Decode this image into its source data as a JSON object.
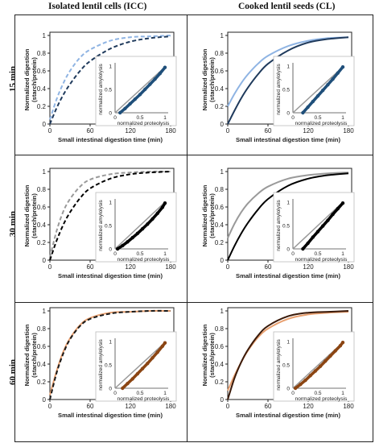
{
  "column_titles": [
    "Isolated lentil cells (ICC)",
    "Cooked lentil seeds (CL)"
  ],
  "row_labels": [
    "15 min",
    "30 min",
    "60 min"
  ],
  "chart_data": [
    {
      "id": "icc-15",
      "type": "line",
      "row": 0,
      "col": 0,
      "xlabel": "Small intestinal digestion time (min)",
      "ylabel": "Normalized digestion (starch/protein)",
      "xticks": [
        0,
        60,
        120,
        180
      ],
      "yticks": [
        0,
        0.2,
        0.4,
        0.6,
        0.8,
        1
      ],
      "xlim": [
        0,
        180
      ],
      "ylim": [
        0,
        1
      ],
      "series": [
        {
          "color": "#8fb4e3",
          "dash": true,
          "values": {
            "x": [
              0,
              10,
              20,
              30,
              45,
              60,
              90,
              120,
              150,
              180
            ],
            "y": [
              0.05,
              0.28,
              0.46,
              0.6,
              0.75,
              0.84,
              0.94,
              0.98,
              0.99,
              1.0
            ]
          }
        },
        {
          "color": "#1f3a5c",
          "dash": true,
          "values": {
            "x": [
              0,
              10,
              20,
              30,
              45,
              60,
              90,
              120,
              150,
              180
            ],
            "y": [
              0.0,
              0.18,
              0.33,
              0.45,
              0.6,
              0.71,
              0.85,
              0.93,
              0.97,
              0.99
            ]
          }
        }
      ],
      "inset": {
        "type": "scatter",
        "xlabel": "normalized proteolysis",
        "ylabel": "normalized amylolysis",
        "xticks": [
          0,
          0.5,
          1
        ],
        "yticks": [
          0,
          0.5,
          1
        ],
        "color": "#1f4f7a",
        "line_y": [
          0.0,
          0.98
        ],
        "points": {
          "x": [
            0.1,
            0.2,
            0.3,
            0.4,
            0.5,
            0.6,
            0.7,
            0.8,
            0.9,
            1.0
          ],
          "y": [
            0.0,
            0.09,
            0.19,
            0.29,
            0.39,
            0.5,
            0.61,
            0.72,
            0.84,
            0.97
          ]
        }
      }
    },
    {
      "id": "cl-15",
      "type": "line",
      "row": 0,
      "col": 1,
      "xlabel": "Small intestinal digestion time (min)",
      "ylabel": "Normalized digestion (starch/protein)",
      "xticks": [
        0,
        60,
        120,
        180
      ],
      "yticks": [
        0,
        0.2,
        0.4,
        0.6,
        0.8,
        1
      ],
      "xlim": [
        0,
        180
      ],
      "ylim": [
        0,
        1
      ],
      "series": [
        {
          "color": "#8fb4e3",
          "dash": false,
          "values": {
            "x": [
              0,
              10,
              20,
              30,
              45,
              60,
              90,
              120,
              150,
              180
            ],
            "y": [
              0.2,
              0.34,
              0.46,
              0.56,
              0.68,
              0.77,
              0.88,
              0.94,
              0.97,
              0.98
            ]
          }
        },
        {
          "color": "#1f3a5c",
          "dash": false,
          "values": {
            "x": [
              0,
              10,
              20,
              30,
              45,
              60,
              90,
              120,
              150,
              180
            ],
            "y": [
              0.0,
              0.15,
              0.29,
              0.41,
              0.56,
              0.68,
              0.83,
              0.92,
              0.96,
              0.98
            ]
          }
        }
      ],
      "inset": {
        "type": "scatter",
        "xlabel": "normalized proteolysis",
        "ylabel": "normalized amylolysis",
        "xticks": [
          0,
          0.5,
          1
        ],
        "yticks": [
          0,
          0.5,
          1
        ],
        "color": "#1f4f7a",
        "line_y": [
          0.0,
          0.98
        ],
        "points": {
          "x": [
            0.2,
            0.3,
            0.4,
            0.5,
            0.6,
            0.7,
            0.8,
            0.9,
            1.0
          ],
          "y": [
            0.0,
            0.12,
            0.24,
            0.36,
            0.48,
            0.6,
            0.72,
            0.85,
            0.98
          ]
        }
      }
    },
    {
      "id": "icc-30",
      "type": "line",
      "row": 1,
      "col": 0,
      "xlabel": "Small intestinal digestion time (min)",
      "ylabel": "Normalized digestion (starch/protein)",
      "xticks": [
        0,
        60,
        120,
        180
      ],
      "yticks": [
        0,
        0.2,
        0.4,
        0.6,
        0.8,
        1
      ],
      "xlim": [
        0,
        180
      ],
      "ylim": [
        0,
        1
      ],
      "series": [
        {
          "color": "#9a9a9a",
          "dash": true,
          "values": {
            "x": [
              0,
              10,
              20,
              30,
              45,
              60,
              90,
              120,
              150,
              180
            ],
            "y": [
              0.03,
              0.33,
              0.55,
              0.69,
              0.83,
              0.91,
              0.97,
              0.99,
              1.0,
              1.0
            ]
          }
        },
        {
          "color": "#000000",
          "dash": true,
          "values": {
            "x": [
              0,
              10,
              20,
              30,
              45,
              60,
              90,
              120,
              150,
              180
            ],
            "y": [
              0.0,
              0.22,
              0.4,
              0.54,
              0.7,
              0.81,
              0.92,
              0.97,
              0.99,
              1.0
            ]
          }
        }
      ],
      "inset": {
        "type": "scatter",
        "xlabel": "normalized proteolysis",
        "ylabel": "normalized amylolysis",
        "xticks": [
          0,
          0.5,
          1
        ],
        "yticks": [
          0,
          0.5,
          1
        ],
        "color": "#000000",
        "line_y": [
          0.0,
          1.0
        ],
        "points": {
          "x": [
            0.05,
            0.15,
            0.25,
            0.35,
            0.45,
            0.55,
            0.65,
            0.75,
            0.85,
            0.95,
            1.0
          ],
          "y": [
            0.0,
            0.07,
            0.15,
            0.24,
            0.33,
            0.43,
            0.53,
            0.64,
            0.76,
            0.89,
            0.98
          ]
        }
      }
    },
    {
      "id": "cl-30",
      "type": "line",
      "row": 1,
      "col": 1,
      "xlabel": "Small intestinal digestion time (min)",
      "ylabel": "Normalized digestion (starch/protein)",
      "xticks": [
        0,
        60,
        120,
        180
      ],
      "yticks": [
        0,
        0.2,
        0.4,
        0.6,
        0.8,
        1
      ],
      "xlim": [
        0,
        180
      ],
      "ylim": [
        0,
        1
      ],
      "series": [
        {
          "color": "#9a9a9a",
          "dash": false,
          "values": {
            "x": [
              0,
              10,
              20,
              30,
              45,
              60,
              90,
              120,
              150,
              180
            ],
            "y": [
              0.25,
              0.41,
              0.54,
              0.64,
              0.75,
              0.83,
              0.92,
              0.96,
              0.98,
              0.99
            ]
          }
        },
        {
          "color": "#000000",
          "dash": false,
          "values": {
            "x": [
              0,
              10,
              20,
              30,
              45,
              60,
              90,
              120,
              150,
              180
            ],
            "y": [
              0.0,
              0.16,
              0.3,
              0.42,
              0.57,
              0.69,
              0.84,
              0.92,
              0.96,
              0.98
            ]
          }
        }
      ],
      "inset": {
        "type": "scatter",
        "xlabel": "normalized proteolysis",
        "ylabel": "normalized amylolysis",
        "xticks": [
          0,
          0.5,
          1
        ],
        "yticks": [
          0,
          0.5,
          1
        ],
        "color": "#000000",
        "line_y": [
          0.0,
          1.0
        ],
        "points": {
          "x": [
            0.2,
            0.3,
            0.4,
            0.5,
            0.6,
            0.7,
            0.8,
            0.9,
            1.0
          ],
          "y": [
            0.0,
            0.12,
            0.25,
            0.37,
            0.49,
            0.61,
            0.74,
            0.86,
            0.98
          ]
        }
      }
    },
    {
      "id": "icc-60",
      "type": "line",
      "row": 2,
      "col": 0,
      "xlabel": "Small intestinal digestion time (min)",
      "ylabel": "Normalized digestion (starch/protein)",
      "xticks": [
        0,
        60,
        120,
        180
      ],
      "yticks": [
        0,
        0.2,
        0.4,
        0.6,
        0.8,
        1
      ],
      "xlim": [
        0,
        180
      ],
      "ylim": [
        0,
        1
      ],
      "series": [
        {
          "color": "#e8a070",
          "dash": false,
          "values": {
            "x": [
              0,
              10,
              20,
              30,
              45,
              60,
              90,
              120,
              150,
              180
            ],
            "y": [
              0.05,
              0.32,
              0.54,
              0.69,
              0.84,
              0.92,
              0.98,
              0.99,
              1.0,
              1.0
            ]
          }
        },
        {
          "color": "#1a1a1a",
          "dash": true,
          "values": {
            "x": [
              0,
              10,
              20,
              30,
              45,
              60,
              90,
              120,
              150,
              180
            ],
            "y": [
              0.0,
              0.3,
              0.52,
              0.68,
              0.83,
              0.91,
              0.97,
              0.99,
              1.0,
              1.0
            ]
          }
        }
      ],
      "inset": {
        "type": "scatter",
        "xlabel": "normalized proteolysis",
        "ylabel": "normalized amylolysis",
        "xticks": [
          0,
          0.5,
          1
        ],
        "yticks": [
          0,
          0.5,
          1
        ],
        "color": "#8b4513",
        "line_y": [
          0.0,
          0.98
        ],
        "points": {
          "x": [
            0.15,
            0.25,
            0.35,
            0.45,
            0.55,
            0.65,
            0.75,
            0.85,
            0.95,
            1.0
          ],
          "y": [
            0.0,
            0.1,
            0.2,
            0.31,
            0.42,
            0.53,
            0.65,
            0.77,
            0.9,
            0.97
          ]
        }
      }
    },
    {
      "id": "cl-60",
      "type": "line",
      "row": 2,
      "col": 1,
      "xlabel": "Small intestinal digestion time (min)",
      "ylabel": "Normalized digestion (starch/protein)",
      "xticks": [
        0,
        60,
        120,
        180
      ],
      "yticks": [
        0,
        0.2,
        0.4,
        0.6,
        0.8,
        1
      ],
      "xlim": [
        0,
        180
      ],
      "ylim": [
        0,
        1
      ],
      "series": [
        {
          "color": "#e8a070",
          "dash": false,
          "values": {
            "x": [
              0,
              10,
              20,
              30,
              45,
              60,
              90,
              120,
              150,
              180
            ],
            "y": [
              0.1,
              0.27,
              0.42,
              0.55,
              0.7,
              0.8,
              0.91,
              0.96,
              0.98,
              0.99
            ]
          }
        },
        {
          "color": "#3a1a0a",
          "dash": false,
          "values": {
            "x": [
              0,
              10,
              20,
              30,
              45,
              60,
              90,
              120,
              150,
              180
            ],
            "y": [
              0.0,
              0.24,
              0.42,
              0.56,
              0.72,
              0.83,
              0.94,
              0.98,
              0.99,
              1.0
            ]
          }
        }
      ],
      "inset": {
        "type": "scatter",
        "xlabel": "normalized proteolysis",
        "ylabel": "normalized amylolysis",
        "xticks": [
          0,
          0.5,
          1
        ],
        "yticks": [
          0,
          0.5,
          1
        ],
        "color": "#8b4513",
        "line_y": [
          0.0,
          0.98
        ],
        "points": {
          "x": [
            0.05,
            0.15,
            0.25,
            0.35,
            0.45,
            0.55,
            0.65,
            0.75,
            0.85,
            0.95,
            1.0
          ],
          "y": [
            0.0,
            0.08,
            0.17,
            0.27,
            0.37,
            0.47,
            0.58,
            0.69,
            0.8,
            0.91,
            0.98
          ]
        }
      }
    }
  ]
}
